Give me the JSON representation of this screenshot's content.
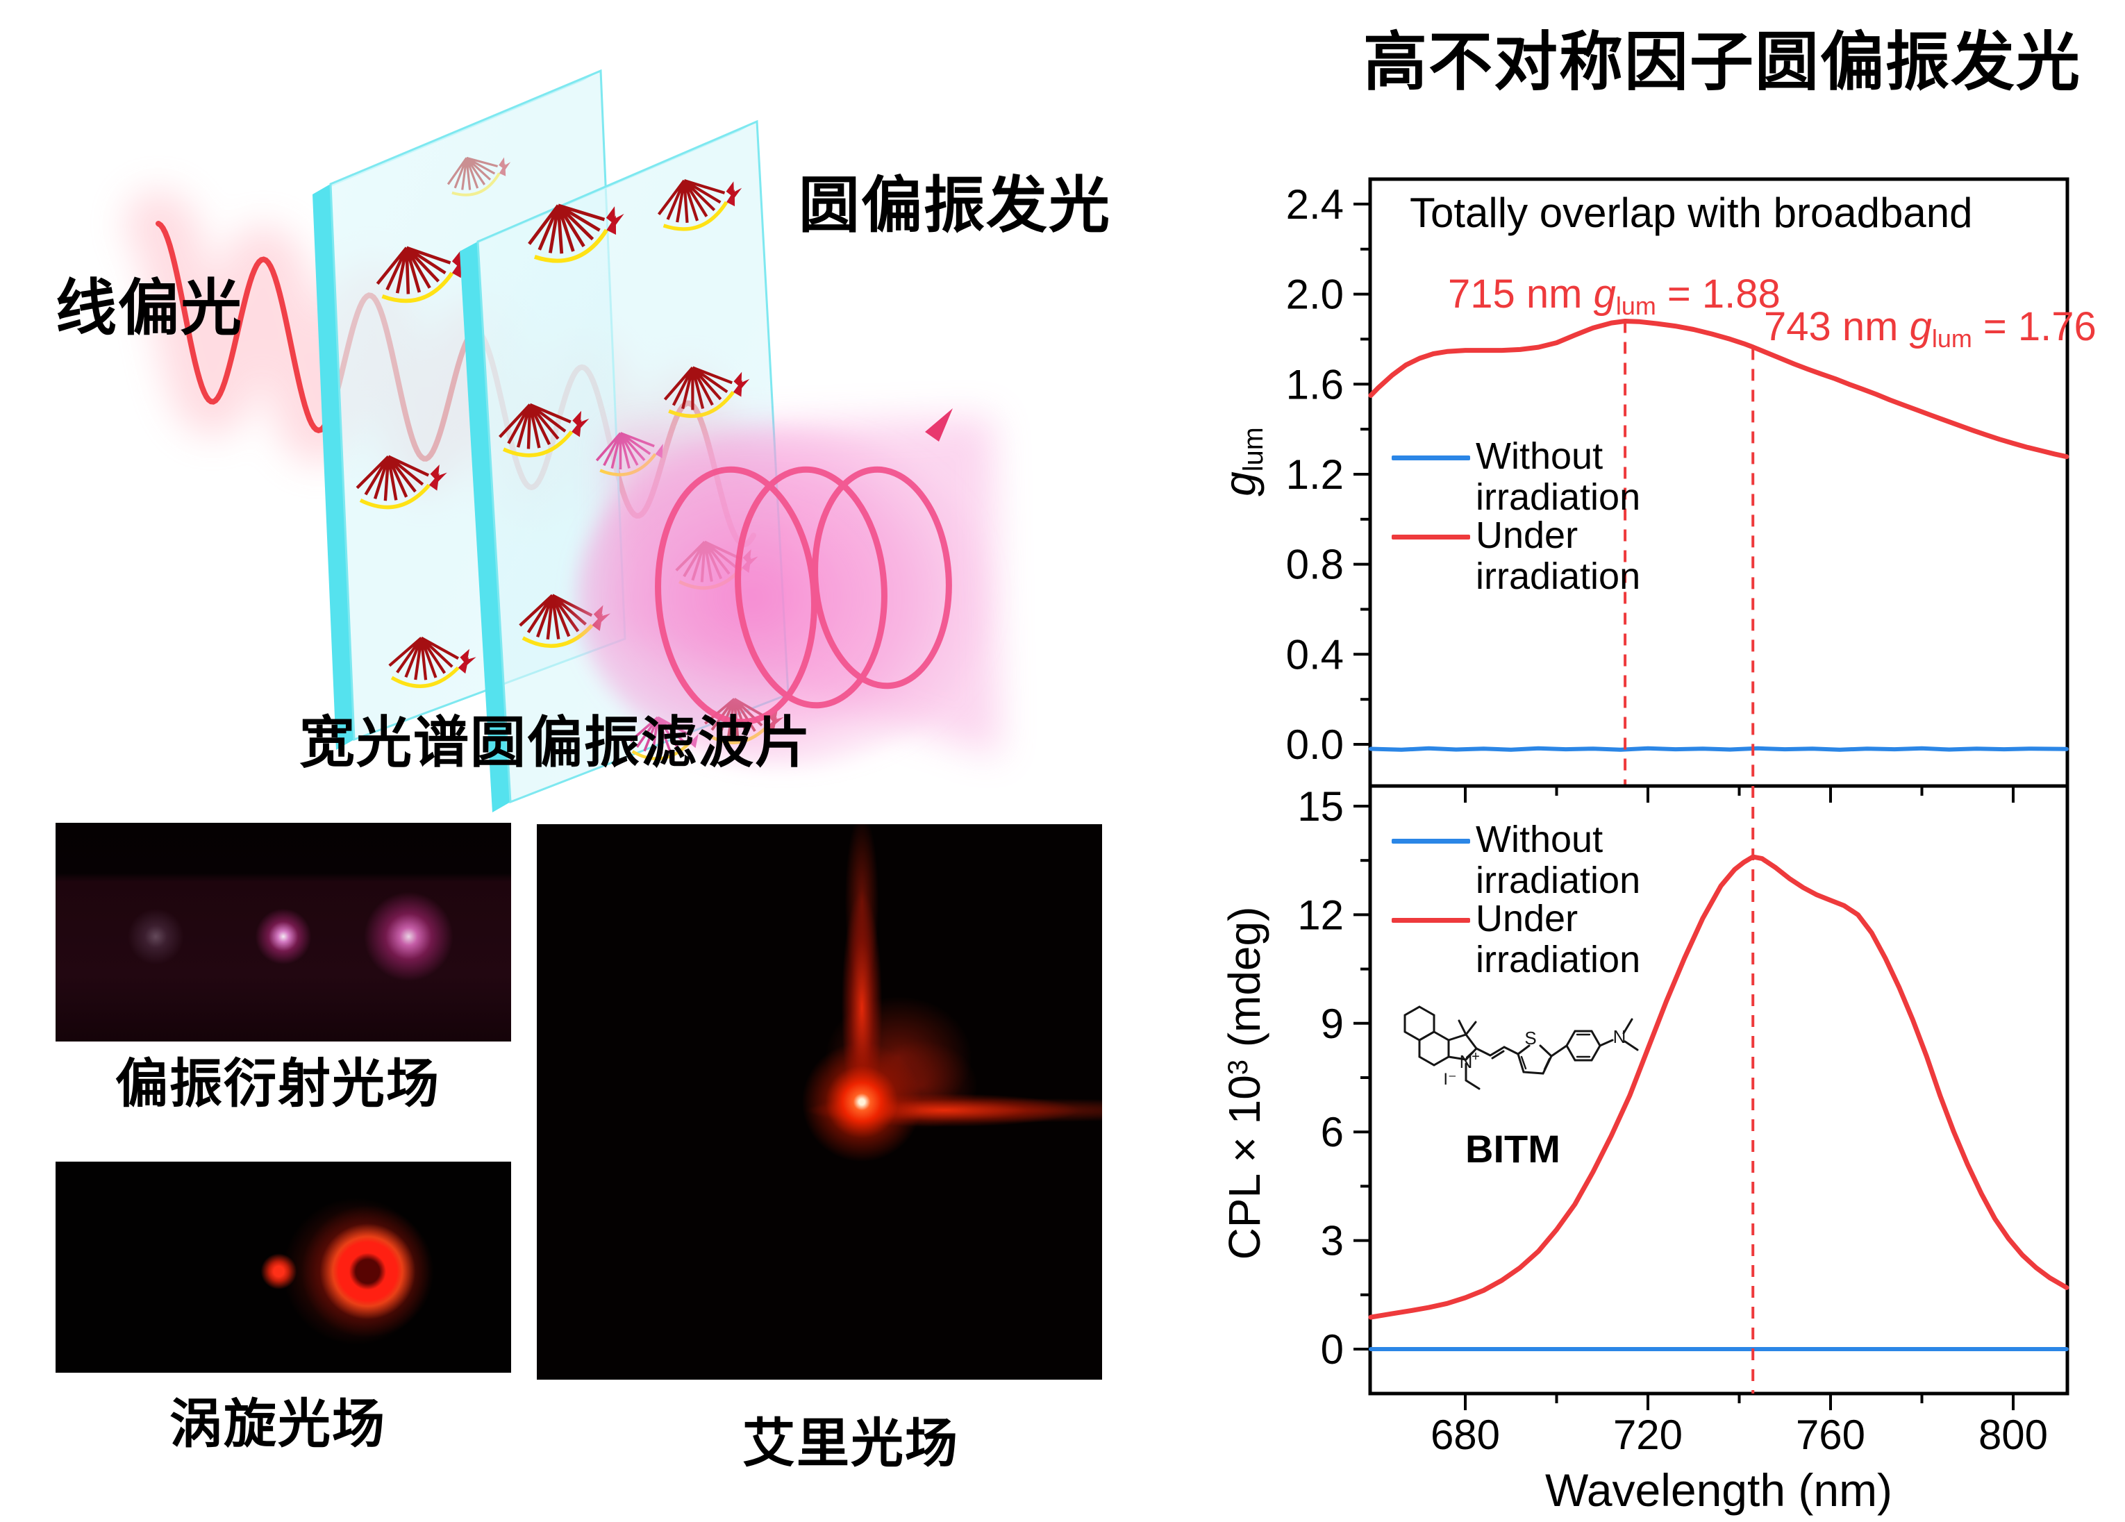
{
  "diagram": {
    "label_input": "线偏光",
    "label_output": "圆偏振发光"
  },
  "filter_section": {
    "title": "宽光谱圆偏振滤波片",
    "photos": [
      {
        "name": "polarization-diffraction",
        "label": "偏振衍射光场"
      },
      {
        "name": "vortex",
        "label": "涡旋光场"
      },
      {
        "name": "airy",
        "label": "艾里光场"
      }
    ]
  },
  "right_panel": {
    "title": "高不对称因子圆偏振发光",
    "molecule": {
      "label": "BITM",
      "atoms": {
        "s": "S",
        "n_ring": "N",
        "plus": "+",
        "iodide": "I⁻",
        "n_amine": "N"
      }
    }
  },
  "colors": {
    "red": "#ee3a3c",
    "blue": "#2b86e6",
    "black": "#000000"
  },
  "chart_data": [
    {
      "type": "line",
      "title": "Totally overlap with broadband",
      "ylabel": {
        "sym": "g",
        "sub": "lum"
      },
      "xlim": [
        659.2,
        811.8
      ],
      "ylim": [
        -0.19,
        2.51
      ],
      "yticks": [
        0.0,
        0.4,
        0.8,
        1.2,
        1.6,
        2.0,
        2.4
      ],
      "ytick_labels": [
        "0.0",
        "0.4",
        "0.8",
        "1.2",
        "1.6",
        "2.0",
        "2.4"
      ],
      "y_minor": [
        0.2,
        0.6,
        1.0,
        1.4,
        1.8,
        2.2
      ],
      "xticks": [
        680,
        720,
        760,
        800
      ],
      "x_minor": [
        700,
        740,
        780
      ],
      "grid": false,
      "legend_position": "left-middle",
      "legend": [
        {
          "label": "Without irradiation",
          "color": "#2b86e6"
        },
        {
          "label": "Under irradiation",
          "color": "#ee3a3c"
        }
      ],
      "annotations": [
        {
          "prefix": "715 nm ",
          "sym": "g",
          "sub": "lum",
          "rest": " = 1.88"
        },
        {
          "prefix": "743 nm ",
          "sym": "g",
          "sub": "lum",
          "rest": " = 1.76"
        }
      ],
      "dashed": [
        {
          "x": 715,
          "from": 1.88
        },
        {
          "x": 743,
          "from": 1.76
        }
      ],
      "series": [
        {
          "name": "Without irradiation",
          "color": "#2b86e6",
          "width": 6,
          "points": [
            [
              659.3,
              -0.02
            ],
            [
              666,
              -0.024
            ],
            [
              672,
              -0.018
            ],
            [
              678,
              -0.023
            ],
            [
              684,
              -0.019
            ],
            [
              690,
              -0.024
            ],
            [
              696,
              -0.018
            ],
            [
              702,
              -0.022
            ],
            [
              708,
              -0.019
            ],
            [
              714,
              -0.024
            ],
            [
              720,
              -0.018
            ],
            [
              726,
              -0.022
            ],
            [
              732,
              -0.019
            ],
            [
              738,
              -0.023
            ],
            [
              744,
              -0.018
            ],
            [
              750,
              -0.022
            ],
            [
              756,
              -0.019
            ],
            [
              762,
              -0.024
            ],
            [
              768,
              -0.019
            ],
            [
              774,
              -0.022
            ],
            [
              780,
              -0.018
            ],
            [
              786,
              -0.023
            ],
            [
              792,
              -0.019
            ],
            [
              798,
              -0.022
            ],
            [
              804,
              -0.019
            ],
            [
              811.7,
              -0.021
            ]
          ]
        },
        {
          "name": "Under irradiation",
          "color": "#ee3a3c",
          "width": 7,
          "points": [
            [
              659.3,
              1.55
            ],
            [
              661,
              1.585
            ],
            [
              664,
              1.64
            ],
            [
              667,
              1.685
            ],
            [
              670,
              1.715
            ],
            [
              673,
              1.735
            ],
            [
              676,
              1.745
            ],
            [
              680,
              1.75
            ],
            [
              684,
              1.75
            ],
            [
              688,
              1.75
            ],
            [
              692,
              1.754
            ],
            [
              696,
              1.764
            ],
            [
              700,
              1.784
            ],
            [
              704,
              1.818
            ],
            [
              708,
              1.85
            ],
            [
              712,
              1.872
            ],
            [
              715,
              1.88
            ],
            [
              718,
              1.878
            ],
            [
              722,
              1.869
            ],
            [
              726,
              1.858
            ],
            [
              730,
              1.843
            ],
            [
              734,
              1.823
            ],
            [
              738,
              1.8
            ],
            [
              741,
              1.78
            ],
            [
              743,
              1.765
            ],
            [
              746,
              1.74
            ],
            [
              749,
              1.715
            ],
            [
              752,
              1.69
            ],
            [
              755,
              1.667
            ],
            [
              758,
              1.645
            ],
            [
              761,
              1.624
            ],
            [
              764,
              1.6
            ],
            [
              767,
              1.578
            ],
            [
              770,
              1.555
            ],
            [
              773,
              1.53
            ],
            [
              776,
              1.507
            ],
            [
              779,
              1.485
            ],
            [
              782,
              1.462
            ],
            [
              785,
              1.44
            ],
            [
              788,
              1.418
            ],
            [
              791,
              1.396
            ],
            [
              794,
              1.375
            ],
            [
              797,
              1.355
            ],
            [
              800,
              1.337
            ],
            [
              803,
              1.32
            ],
            [
              806,
              1.305
            ],
            [
              809,
              1.29
            ],
            [
              811.7,
              1.278
            ]
          ]
        }
      ]
    },
    {
      "type": "line",
      "ylabel": {
        "base": "CPL × 10",
        "sup": "3",
        "rest": " (mdeg)"
      },
      "xlabel": "Wavelength (nm)",
      "xlim": [
        659.2,
        811.8
      ],
      "ylim": [
        -1.23,
        15.56
      ],
      "yticks": [
        0,
        3,
        6,
        9,
        12,
        15
      ],
      "ytick_labels": [
        "0",
        "3",
        "6",
        "9",
        "12",
        "15"
      ],
      "y_minor": [
        1.5,
        4.5,
        7.5,
        10.5,
        13.5
      ],
      "xticks": [
        680,
        720,
        760,
        800
      ],
      "xtick_labels": [
        "680",
        "720",
        "760",
        "800"
      ],
      "x_minor": [
        700,
        740,
        780
      ],
      "grid": false,
      "legend_position": "left-top",
      "legend": [
        {
          "label": "Without irradiation",
          "color": "#2b86e6"
        },
        {
          "label": "Under irradiation",
          "color": "#ee3a3c"
        }
      ],
      "dashed": [
        {
          "x": 743,
          "from": "top"
        }
      ],
      "series": [
        {
          "name": "Without irradiation",
          "color": "#2b86e6",
          "width": 6,
          "points": [
            [
              659.3,
              0
            ],
            [
              811.7,
              0
            ]
          ]
        },
        {
          "name": "Under irradiation",
          "color": "#ee3a3c",
          "width": 7,
          "points": [
            [
              659.3,
              0.88
            ],
            [
              664,
              0.98
            ],
            [
              668,
              1.06
            ],
            [
              672,
              1.15
            ],
            [
              676,
              1.26
            ],
            [
              680,
              1.42
            ],
            [
              684,
              1.62
            ],
            [
              688,
              1.9
            ],
            [
              692,
              2.25
            ],
            [
              696,
              2.7
            ],
            [
              700,
              3.3
            ],
            [
              704,
              4.0
            ],
            [
              708,
              4.9
            ],
            [
              712,
              5.9
            ],
            [
              716,
              7.0
            ],
            [
              720,
              8.3
            ],
            [
              724,
              9.6
            ],
            [
              728,
              10.8
            ],
            [
              732,
              11.9
            ],
            [
              736,
              12.8
            ],
            [
              739,
              13.25
            ],
            [
              741,
              13.45
            ],
            [
              743,
              13.6
            ],
            [
              745,
              13.55
            ],
            [
              748,
              13.3
            ],
            [
              751,
              13.0
            ],
            [
              754,
              12.75
            ],
            [
              757,
              12.55
            ],
            [
              760,
              12.4
            ],
            [
              763,
              12.25
            ],
            [
              766,
              12.0
            ],
            [
              769,
              11.5
            ],
            [
              772,
              10.8
            ],
            [
              775,
              10.0
            ],
            [
              778,
              9.1
            ],
            [
              781,
              8.1
            ],
            [
              784,
              7.0
            ],
            [
              787,
              6.0
            ],
            [
              790,
              5.1
            ],
            [
              793,
              4.3
            ],
            [
              796,
              3.6
            ],
            [
              799,
              3.05
            ],
            [
              802,
              2.6
            ],
            [
              805,
              2.25
            ],
            [
              808,
              1.97
            ],
            [
              811.7,
              1.7
            ]
          ]
        }
      ]
    }
  ]
}
